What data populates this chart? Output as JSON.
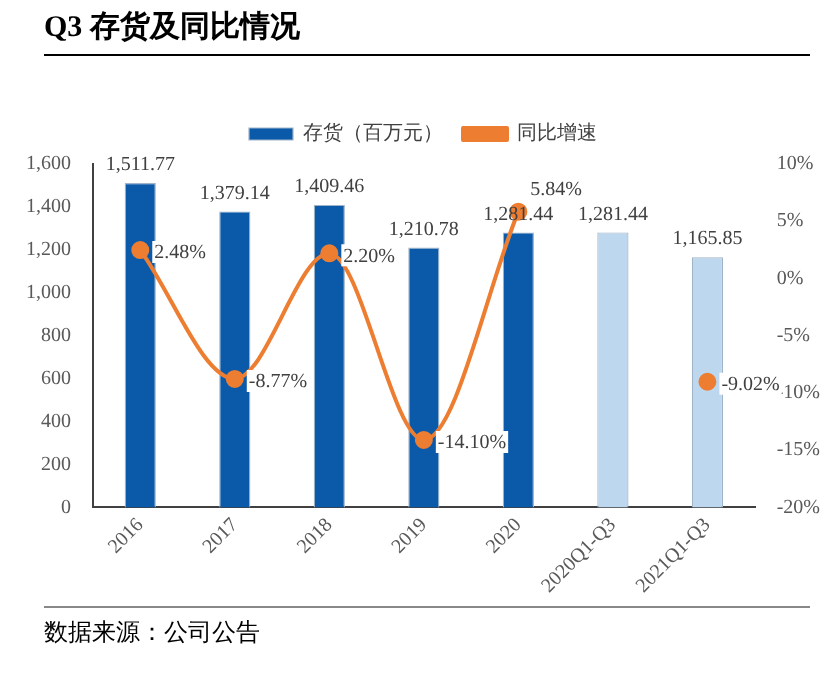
{
  "chart_data": {
    "type": "bar",
    "title": "Q3 存货及同比情况",
    "categories": [
      "2016",
      "2017",
      "2018",
      "2019",
      "2020",
      "2020Q1-Q3",
      "2021Q1-Q3"
    ],
    "series": [
      {
        "name": "存货（百万元）",
        "colors": [
          "#0b5aa9",
          "#0b5aa9",
          "#0b5aa9",
          "#0b5aa9",
          "#0b5aa9",
          "#bdd7ee",
          "#bdd7ee"
        ],
        "values": [
          1511.77,
          1379.14,
          1409.46,
          1210.78,
          1281.44,
          1281.44,
          1165.85
        ],
        "value_labels": [
          "1,511.77",
          "1,379.14",
          "1,409.46",
          "1,210.78",
          "1,281.44",
          "1,281.44",
          "1,165.85"
        ]
      },
      {
        "name": "同比增速",
        "type": "line",
        "axis": "y2",
        "color": "#ed7d31",
        "values": [
          2.48,
          -8.77,
          2.2,
          -14.1,
          5.84,
          null,
          -9.02
        ],
        "value_labels": [
          "2.48%",
          "-8.77%",
          "2.20%",
          "-14.10%",
          "5.84%",
          null,
          "-9.02%"
        ]
      }
    ],
    "ylim": [
      0,
      1600
    ],
    "yticks": [
      0,
      {
        "value": 200,
        "label": "200"
      },
      {
        "value": 400,
        "label": "400"
      },
      {
        "value": 600,
        "label": "600"
      },
      {
        "value": 800,
        "label": "800"
      },
      {
        "value": 1000,
        "label": "1,000"
      },
      {
        "value": 1200,
        "label": "1,200"
      },
      {
        "value": 1400,
        "label": "1,400"
      },
      {
        "value": 1600,
        "label": "1,600"
      }
    ],
    "y2lim": [
      -20,
      10
    ],
    "y2ticks": [
      {
        "value": -20,
        "label": "-20%"
      },
      {
        "value": -15,
        "label": "-15%"
      },
      {
        "value": -10,
        "label": "-10%"
      },
      {
        "value": -5,
        "label": "-5%"
      },
      {
        "value": 0,
        "label": "0%"
      },
      {
        "value": 5,
        "label": "5%"
      },
      {
        "value": 10,
        "label": "10%"
      }
    ],
    "legend": "top",
    "marker": "circle",
    "annotations": [
      "数据来源：公司公告"
    ]
  }
}
